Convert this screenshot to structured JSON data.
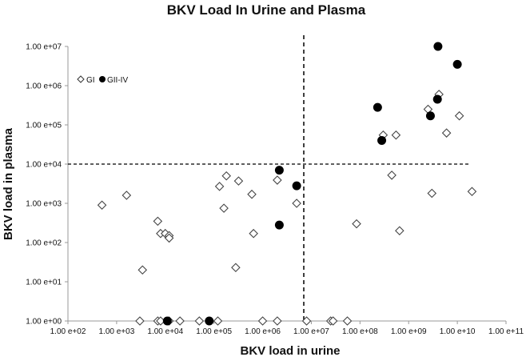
{
  "chart_data": {
    "type": "scatter",
    "title": "BKV Load  In Urine and Plasma",
    "xlabel": "BKV load in urine",
    "ylabel": "BKV load in plasma",
    "xscale": "log",
    "yscale": "log",
    "xlim": [
      100,
      100000000000
    ],
    "ylim": [
      1,
      10000000
    ],
    "x_tick_labels": [
      "1.00 e+02",
      "1.00 e+03",
      "1.00 e+04",
      "1.00 e+05",
      "1.00 e+06",
      "1.00 e+07",
      "1.00 e+08",
      "1.00 e+09",
      "1.00 e+10",
      "1.00 e+11"
    ],
    "y_tick_labels": [
      "1.00 e+00",
      "1.00 e+01",
      "1.00 e+02",
      "1.00 e+03",
      "1.00 e+04",
      "1.00 e+05",
      "1.00 e+06",
      "1.00 e+07"
    ],
    "grid": false,
    "legend_position": "top-left",
    "reference_lines": [
      {
        "axis": "x",
        "value": 7000000,
        "style": "dashed"
      },
      {
        "axis": "y",
        "value": 10000,
        "style": "dashed"
      }
    ],
    "series": [
      {
        "name": "GI",
        "marker": "open-diamond",
        "points": [
          [
            500,
            900
          ],
          [
            1600,
            1600
          ],
          [
            3400,
            20
          ],
          [
            7000,
            350
          ],
          [
            8000,
            170
          ],
          [
            10000,
            170
          ],
          [
            12000,
            150
          ],
          [
            12000,
            130
          ],
          [
            3000,
            1
          ],
          [
            7000,
            1
          ],
          [
            8000,
            1
          ],
          [
            12000,
            1
          ],
          [
            20000,
            1
          ],
          [
            50000,
            1
          ],
          [
            120000,
            1
          ],
          [
            130000,
            2700
          ],
          [
            160000,
            750
          ],
          [
            180000,
            5000
          ],
          [
            280000,
            23
          ],
          [
            320000,
            3700
          ],
          [
            600000,
            1700
          ],
          [
            650000,
            170
          ],
          [
            1000000,
            1
          ],
          [
            2000000,
            3900
          ],
          [
            2000000,
            1
          ],
          [
            5000000,
            1000
          ],
          [
            8000000,
            1
          ],
          [
            25000000,
            1
          ],
          [
            28000000,
            1
          ],
          [
            55000000,
            1
          ],
          [
            85000000,
            300
          ],
          [
            300000000,
            55000
          ],
          [
            450000000,
            5200
          ],
          [
            550000000,
            55000
          ],
          [
            650000000,
            200
          ],
          [
            2500000000,
            250000
          ],
          [
            3000000000,
            1800
          ],
          [
            4200000000,
            600000
          ],
          [
            6000000000,
            62000
          ],
          [
            11000000000,
            170000
          ],
          [
            20000000000,
            2000
          ]
        ]
      },
      {
        "name": "GII-IV",
        "marker": "filled-circle",
        "points": [
          [
            11000,
            1
          ],
          [
            80000,
            1
          ],
          [
            2200000,
            7000
          ],
          [
            2200000,
            280
          ],
          [
            5000000,
            2800
          ],
          [
            230000000,
            280000
          ],
          [
            280000000,
            40000
          ],
          [
            2800000000,
            170000
          ],
          [
            3900000000,
            450000
          ],
          [
            4000000000,
            10000000
          ],
          [
            10000000000,
            3500000
          ]
        ]
      }
    ]
  }
}
